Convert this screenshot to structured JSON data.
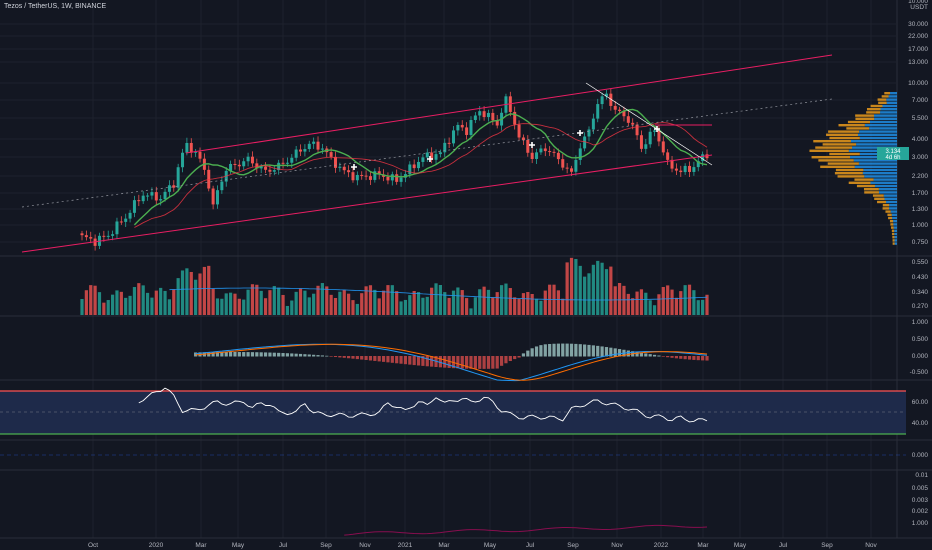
{
  "header": {
    "symbol_title": "Tezos / TetherUS, 1W, BINANCE",
    "currency": "USDT",
    "currency_top": "10.000"
  },
  "colors": {
    "background": "#131722",
    "grid": "#1e222d",
    "bull": "#26a69a",
    "bear": "#ef5350",
    "channel": "#e91e63",
    "sma_green": "#4caf50",
    "sma_red": "#f23645",
    "rsi_band": "#1e2a4a",
    "rsi_line": "#ffffff",
    "macd_line": "#2196f3",
    "signal_line": "#ff6d00",
    "rsi_upper": "#ff5252",
    "rsi_lower": "#4caf50",
    "vp_up": "#f7a21b",
    "vp_down": "#2196f3"
  },
  "price_badge": {
    "value": "3.134",
    "sub": "4d 6h"
  },
  "chart_data": [
    {
      "panel": "price",
      "type": "candlestick",
      "yscale": "log",
      "ylim": [
        0.6,
        36
      ],
      "ytick_labels": [
        "30.000",
        "22.000",
        "17.000",
        "13.000",
        "10.000",
        "7.000",
        "5.500",
        "4.000",
        "3.000",
        "2.200",
        "1.700",
        "1.300",
        "1.000",
        "0.750"
      ],
      "x_labels": [
        "Oct",
        "2020",
        "Mar",
        "May",
        "Jul",
        "Sep",
        "Nov",
        "2021",
        "Mar",
        "May",
        "Jul",
        "Sep",
        "Nov",
        "2022",
        "Mar",
        "May",
        "Jul",
        "Sep",
        "Nov"
      ],
      "close_anchors": [
        [
          0,
          0.8
        ],
        [
          3,
          0.75
        ],
        [
          6,
          0.82
        ],
        [
          10,
          1.1
        ],
        [
          14,
          1.6
        ],
        [
          18,
          1.5
        ],
        [
          21,
          1.9
        ],
        [
          24,
          3.6
        ],
        [
          26,
          3.1
        ],
        [
          28,
          2.4
        ],
        [
          30,
          1.3
        ],
        [
          33,
          2.4
        ],
        [
          38,
          2.8
        ],
        [
          42,
          2.3
        ],
        [
          46,
          2.6
        ],
        [
          52,
          3.6
        ],
        [
          55,
          3.4
        ],
        [
          57,
          2.8
        ],
        [
          60,
          2.3
        ],
        [
          63,
          2.1
        ],
        [
          68,
          2.2
        ],
        [
          72,
          2.0
        ],
        [
          75,
          2.4
        ],
        [
          78,
          2.9
        ],
        [
          82,
          3.1
        ],
        [
          86,
          4.8
        ],
        [
          88,
          4.5
        ],
        [
          91,
          6.2
        ],
        [
          95,
          5.0
        ],
        [
          97,
          7.3
        ],
        [
          100,
          4.0
        ],
        [
          103,
          2.9
        ],
        [
          106,
          3.4
        ],
        [
          109,
          2.8
        ],
        [
          112,
          2.2
        ],
        [
          114,
          3.5
        ],
        [
          116,
          4.4
        ],
        [
          118,
          7.0
        ],
        [
          120,
          8.0
        ],
        [
          122,
          6.2
        ],
        [
          125,
          5.4
        ],
        [
          128,
          3.4
        ],
        [
          131,
          4.5
        ],
        [
          134,
          2.6
        ],
        [
          137,
          2.3
        ],
        [
          140,
          2.5
        ],
        [
          143,
          3.1
        ]
      ],
      "channel": "rising parallel channel",
      "markers": "white crosses",
      "volume_profile": "right side, orange and blue bars"
    },
    {
      "panel": "volume",
      "type": "bar",
      "ytick_labels": [
        "0.550",
        "0.430",
        "0.340",
        "0.270"
      ]
    },
    {
      "panel": "macd",
      "type": "line+histogram",
      "ytick_labels": [
        "1.000",
        "0.500",
        "0.000",
        "-0.500"
      ]
    },
    {
      "panel": "rsi",
      "type": "line",
      "ytick_labels": [
        "60.00",
        "40.00"
      ],
      "rsi_anchors": [
        [
          13,
          61
        ],
        [
          15,
          64
        ],
        [
          17,
          70
        ],
        [
          19,
          74
        ],
        [
          21,
          65
        ],
        [
          23,
          52
        ],
        [
          26,
          52
        ],
        [
          29,
          57
        ],
        [
          31,
          60
        ],
        [
          34,
          58
        ],
        [
          37,
          61
        ],
        [
          39,
          54
        ],
        [
          41,
          59
        ],
        [
          43,
          58
        ],
        [
          45,
          50
        ],
        [
          49,
          50
        ],
        [
          51,
          59
        ],
        [
          53,
          50
        ],
        [
          55,
          48
        ],
        [
          57,
          48
        ],
        [
          61,
          47
        ],
        [
          65,
          48
        ],
        [
          68,
          50
        ],
        [
          70,
          59
        ],
        [
          72,
          56
        ],
        [
          74,
          51
        ],
        [
          77,
          61
        ],
        [
          79,
          56
        ],
        [
          81,
          66
        ],
        [
          83,
          58
        ],
        [
          85,
          62
        ],
        [
          87,
          63
        ],
        [
          89,
          60
        ],
        [
          92,
          64
        ],
        [
          94,
          60
        ],
        [
          96,
          52
        ],
        [
          98,
          48
        ],
        [
          101,
          45
        ],
        [
          104,
          46
        ],
        [
          107,
          45
        ],
        [
          110,
          44
        ],
        [
          112,
          53
        ],
        [
          115,
          58
        ],
        [
          118,
          61
        ],
        [
          121,
          58
        ],
        [
          124,
          55
        ],
        [
          127,
          51
        ],
        [
          130,
          46
        ],
        [
          133,
          46
        ],
        [
          135,
          43
        ],
        [
          137,
          45
        ],
        [
          140,
          42
        ],
        [
          143,
          43
        ]
      ]
    },
    {
      "panel": "blank_indicator",
      "type": "line",
      "ytick_labels": [
        "0.000"
      ]
    },
    {
      "panel": "small_indicator",
      "type": "line",
      "ytick_labels": [
        "0.01",
        "0.005",
        "0.003",
        "0.002",
        "1.000"
      ]
    }
  ]
}
